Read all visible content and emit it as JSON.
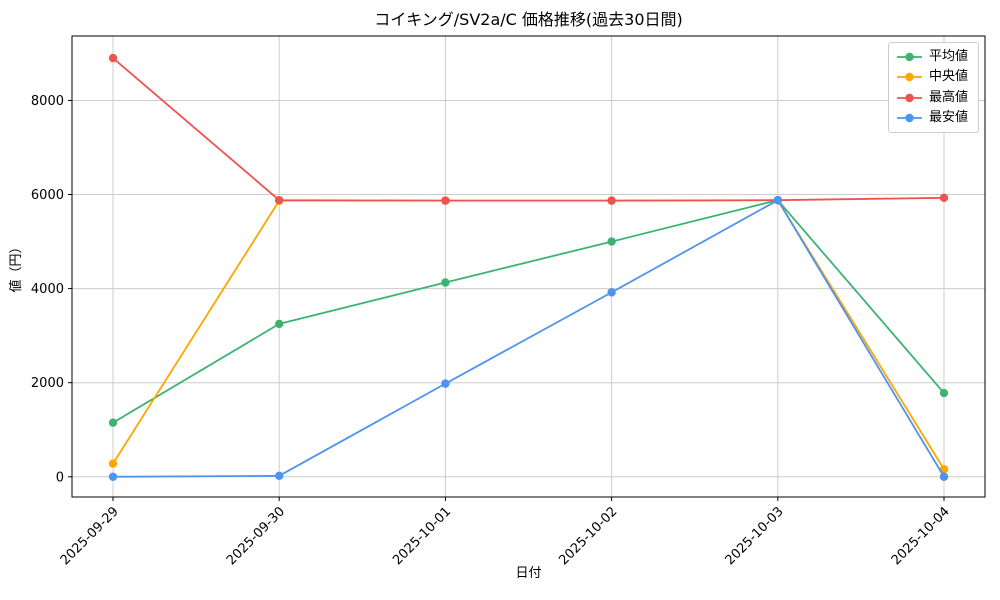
{
  "chart_data": {
    "type": "line",
    "title": "コイキング/SV2a/C 価格推移(過去30日間)",
    "xlabel": "日付",
    "ylabel": "値（円）",
    "categories": [
      "2025-09-29",
      "2025-09-30",
      "2025-10-01",
      "2025-10-02",
      "2025-10-03",
      "2025-10-04"
    ],
    "series": [
      {
        "key": "average",
        "name": "平均値",
        "color": "#3cb371",
        "values": [
          1150,
          3250,
          4130,
          5000,
          5880,
          1780
        ]
      },
      {
        "key": "median",
        "name": "中央値",
        "color": "#ffa500",
        "values": [
          280,
          5870,
          5870,
          5870,
          5880,
          160
        ]
      },
      {
        "key": "highest",
        "name": "最高値",
        "color": "#ef5350",
        "values": [
          8900,
          5880,
          5870,
          5870,
          5880,
          5930
        ]
      },
      {
        "key": "lowest",
        "name": "最安値",
        "color": "#4d94f0",
        "values": [
          0,
          20,
          1980,
          3920,
          5880,
          0
        ]
      }
    ],
    "yticks": [
      0,
      2000,
      4000,
      6000,
      8000
    ],
    "ylim": [
      -430,
      9370
    ],
    "grid": true,
    "grid_color": "#cccccc",
    "legend_position": "upper right"
  }
}
